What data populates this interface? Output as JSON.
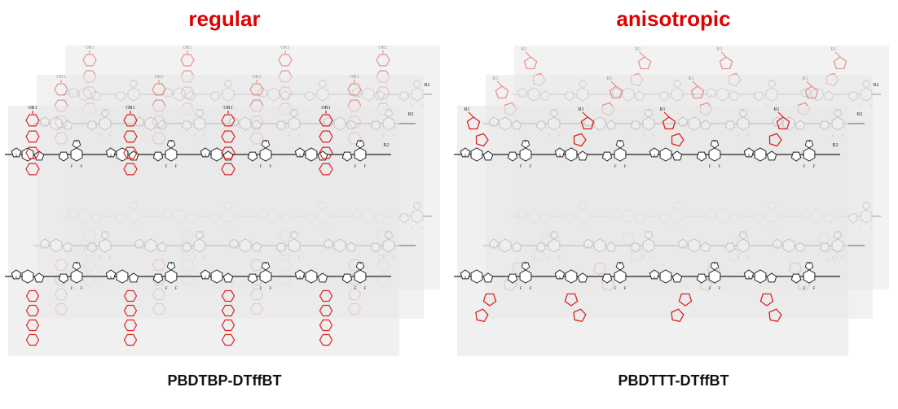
{
  "colors": {
    "accent": "#e00000",
    "chain": "#222222",
    "sidechain": "#e02020",
    "sheet": "#e8e8e8"
  },
  "panels": [
    {
      "title": "regular",
      "caption": "PBDTBP-DTffBT",
      "sidechain_style": "biphenyl-vertical",
      "sidechain_label": "OR",
      "sidechain_subscript": "1"
    },
    {
      "title": "anisotropic",
      "caption": "PBDTTT-DTffBT",
      "sidechain_style": "bithiophene-tilted",
      "sidechain_label": "R",
      "sidechain_subscript": "1"
    }
  ],
  "atoms": {
    "sulfur": "S",
    "fluorine": "F",
    "nitrogen": "N",
    "r2": "R",
    "r2_sub": "2"
  }
}
